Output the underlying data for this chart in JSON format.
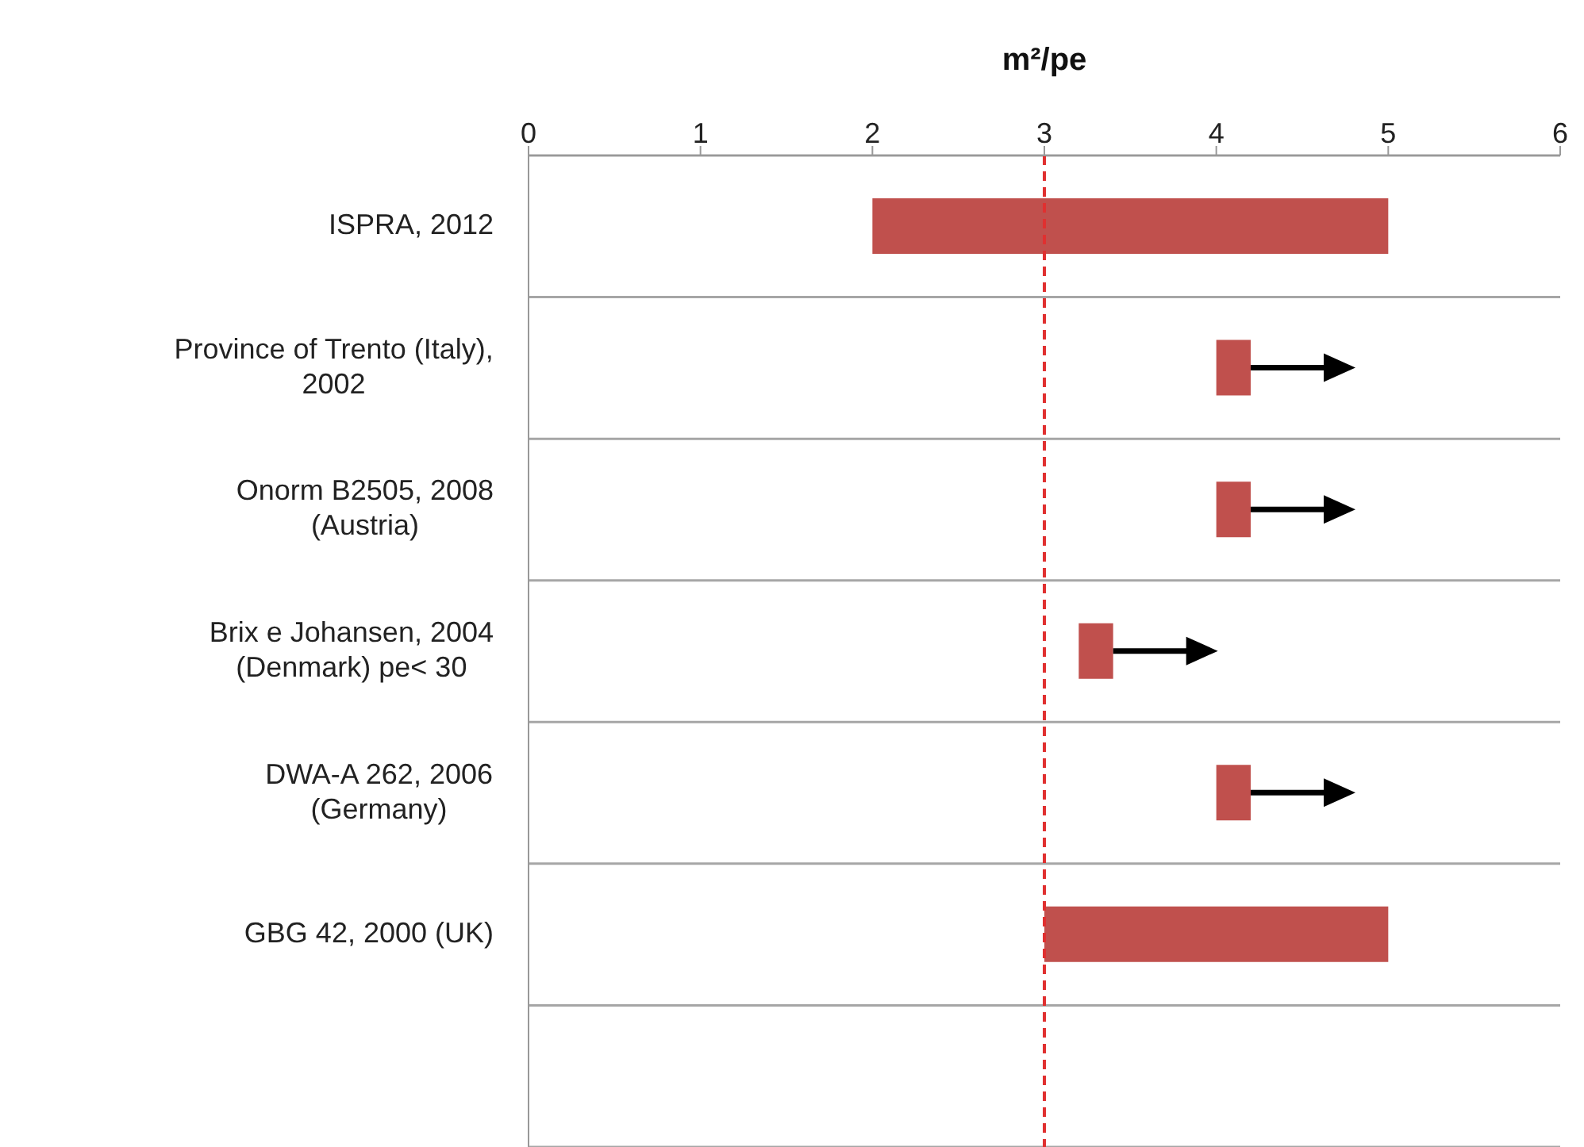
{
  "chart_data": {
    "type": "bar",
    "orientation": "horizontal",
    "xlabel": "m²/pe",
    "categories": [
      "ISPRA, 2012",
      "Province of Trento (Italy), 2002",
      "Onorm B2505, 2008 (Austria)",
      "Brix e Johansen, 2004 (Denmark) pe< 30",
      "DWA-A 262, 2006 (Germany)",
      "GBG 42, 2000 (UK)",
      null
    ],
    "base": [
      2,
      4,
      4,
      3.2,
      4,
      3,
      null
    ],
    "values": [
      3,
      0.2,
      0.2,
      0.2,
      0.2,
      2,
      null
    ],
    "color": "#c0504d",
    "xlim": [
      0,
      6
    ],
    "xticks": [
      0,
      1,
      2,
      3,
      4,
      5,
      6
    ],
    "grid": "y",
    "ref_lines": [
      {
        "axis": "x",
        "value": 3,
        "color": "#e03030",
        "line_style": "dashed"
      }
    ]
  }
}
